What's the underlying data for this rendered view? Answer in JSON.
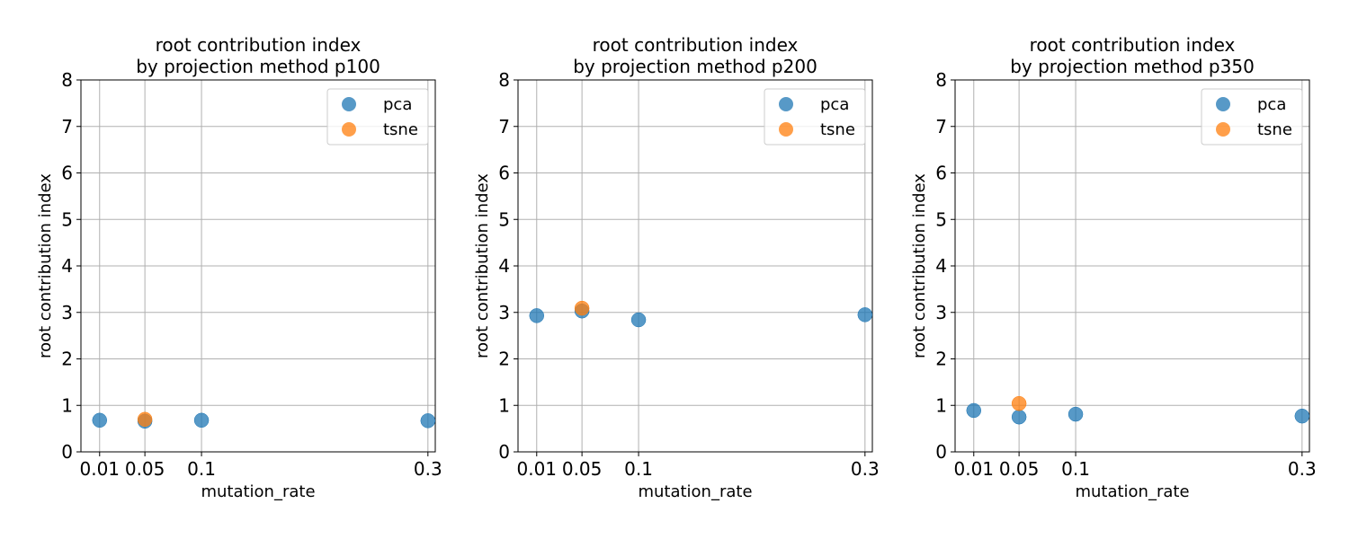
{
  "colors": {
    "pca": "#1f77b4",
    "tsne": "#ff7f0e",
    "grid": "#b0b0b0"
  },
  "chart_data": [
    {
      "type": "scatter",
      "title": "root contribution index\nby projection method p100",
      "xlabel": "mutation_rate",
      "ylabel": "root contribution index",
      "xlim": [
        -0.0065,
        0.3065
      ],
      "ylim": [
        0,
        8
      ],
      "xticks": [
        0.01,
        0.05,
        0.1,
        0.3
      ],
      "xtick_labels": [
        "0.01",
        "0.05",
        "0.1",
        "0.3"
      ],
      "yticks": [
        0,
        1,
        2,
        3,
        4,
        5,
        6,
        7,
        8
      ],
      "grid": true,
      "legend": "top-right",
      "series": [
        {
          "name": "pca",
          "x": [
            0.01,
            0.05,
            0.1,
            0.3
          ],
          "y": [
            0.68,
            0.66,
            0.68,
            0.67
          ]
        },
        {
          "name": "tsne",
          "x": [
            0.05
          ],
          "y": [
            0.7
          ]
        }
      ]
    },
    {
      "type": "scatter",
      "title": "root contribution index\nby projection method p200",
      "xlabel": "mutation_rate",
      "ylabel": "root contribution index",
      "xlim": [
        -0.0065,
        0.3065
      ],
      "ylim": [
        0,
        8
      ],
      "xticks": [
        0.01,
        0.05,
        0.1,
        0.3
      ],
      "xtick_labels": [
        "0.01",
        "0.05",
        "0.1",
        "0.3"
      ],
      "yticks": [
        0,
        1,
        2,
        3,
        4,
        5,
        6,
        7,
        8
      ],
      "grid": true,
      "legend": "top-right",
      "series": [
        {
          "name": "pca",
          "x": [
            0.01,
            0.05,
            0.1,
            0.3
          ],
          "y": [
            2.93,
            3.03,
            2.84,
            2.95
          ]
        },
        {
          "name": "tsne",
          "x": [
            0.05
          ],
          "y": [
            3.09
          ]
        }
      ]
    },
    {
      "type": "scatter",
      "title": "root contribution index\nby projection method p350",
      "xlabel": "mutation_rate",
      "ylabel": "root contribution index",
      "xlim": [
        -0.0065,
        0.3065
      ],
      "ylim": [
        0,
        8
      ],
      "xticks": [
        0.01,
        0.05,
        0.1,
        0.3
      ],
      "xtick_labels": [
        "0.01",
        "0.05",
        "0.1",
        "0.3"
      ],
      "yticks": [
        0,
        1,
        2,
        3,
        4,
        5,
        6,
        7,
        8
      ],
      "grid": true,
      "legend": "top-right",
      "series": [
        {
          "name": "pca",
          "x": [
            0.01,
            0.05,
            0.1,
            0.3
          ],
          "y": [
            0.89,
            0.75,
            0.81,
            0.77
          ]
        },
        {
          "name": "tsne",
          "x": [
            0.05
          ],
          "y": [
            1.04
          ]
        }
      ]
    }
  ]
}
